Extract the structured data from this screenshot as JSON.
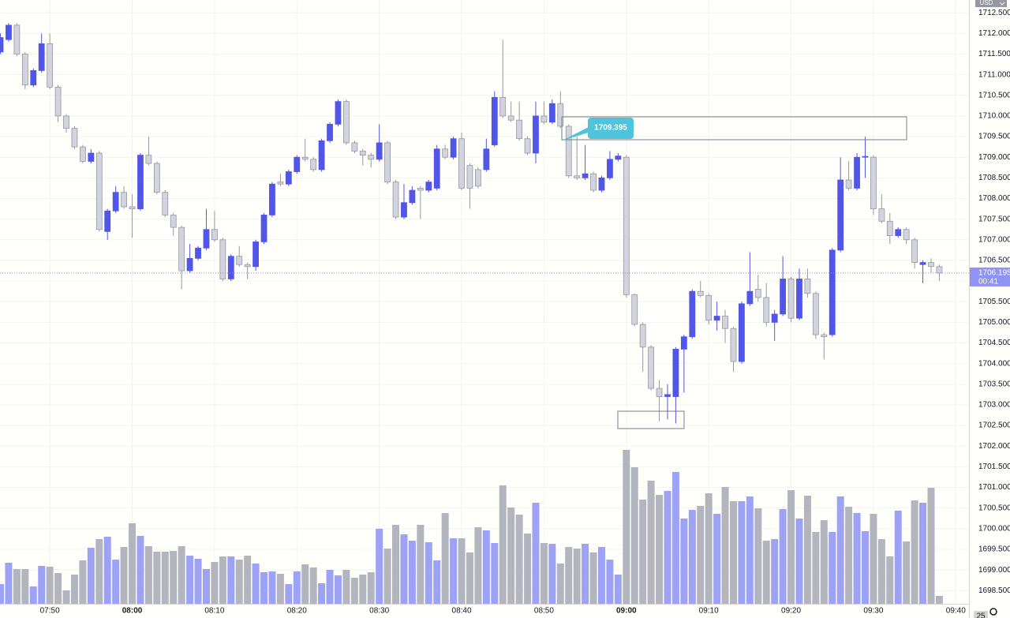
{
  "chart_data": {
    "type": "candlestick",
    "currency": "USD",
    "last_price": 1706.195,
    "countdown": "00:41",
    "callout": 1709.395,
    "badge": "25",
    "up_color": "#5156e9",
    "down_color": "#d1d4dc",
    "down_border": "#9598a1",
    "up_volume_color": "#9ea2f4",
    "down_volume_color": "#b2b5be",
    "grid": true,
    "xlim": [
      463.95,
      581.6
    ],
    "ylim": [
      1698.18,
      1712.81
    ],
    "xticks": [
      {
        "value": 470,
        "label": "07:50"
      },
      {
        "value": 480,
        "label": "08:00"
      },
      {
        "value": 490,
        "label": "08:10"
      },
      {
        "value": 500,
        "label": "08:20"
      },
      {
        "value": 510,
        "label": "08:30"
      },
      {
        "value": 520,
        "label": "08:40"
      },
      {
        "value": 530,
        "label": "08:50"
      },
      {
        "value": 540,
        "label": "09:00"
      },
      {
        "value": 550,
        "label": "09:10"
      },
      {
        "value": 560,
        "label": "09:20"
      },
      {
        "value": 570,
        "label": "09:30"
      },
      {
        "value": 580,
        "label": "09:40"
      }
    ],
    "yticks": [
      {
        "value": 1698.5,
        "label": "1698.500"
      },
      {
        "value": 1699,
        "label": "1699.000"
      },
      {
        "value": 1699.5,
        "label": "1699.500"
      },
      {
        "value": 1700,
        "label": "1700.000"
      },
      {
        "value": 1700.5,
        "label": "1700.500"
      },
      {
        "value": 1701,
        "label": "1701.000"
      },
      {
        "value": 1701.5,
        "label": "1701.500"
      },
      {
        "value": 1702,
        "label": "1702.000"
      },
      {
        "value": 1702.5,
        "label": "1702.500"
      },
      {
        "value": 1703,
        "label": "1703.000"
      },
      {
        "value": 1703.5,
        "label": "1703.500"
      },
      {
        "value": 1704,
        "label": "1704.000"
      },
      {
        "value": 1704.5,
        "label": "1704.500"
      },
      {
        "value": 1705,
        "label": "1705.000"
      },
      {
        "value": 1705.5,
        "label": "1705.500"
      },
      {
        "value": 1706,
        "label": "1706.000"
      },
      {
        "value": 1706.5,
        "label": "1706.500"
      },
      {
        "value": 1707,
        "label": "1707.000"
      },
      {
        "value": 1707.5,
        "label": "1707.500"
      },
      {
        "value": 1708,
        "label": "1708.000"
      },
      {
        "value": 1708.5,
        "label": "1708.500"
      },
      {
        "value": 1709,
        "label": "1709.000"
      },
      {
        "value": 1709.5,
        "label": "1709.500"
      },
      {
        "value": 1710,
        "label": "1710.000"
      },
      {
        "value": 1710.5,
        "label": "1710.500"
      },
      {
        "value": 1711,
        "label": "1711.000"
      },
      {
        "value": 1711.5,
        "label": "1711.500"
      },
      {
        "value": 1712,
        "label": "1712.000"
      },
      {
        "value": 1712.5,
        "label": "1712.500"
      }
    ],
    "x": [
      464,
      465,
      466,
      467,
      468,
      469,
      470,
      471,
      472,
      473,
      474,
      475,
      476,
      477,
      478,
      479,
      480,
      481,
      482,
      483,
      484,
      485,
      486,
      487,
      488,
      489,
      490,
      491,
      492,
      493,
      494,
      495,
      496,
      497,
      498,
      499,
      500,
      501,
      502,
      503,
      504,
      505,
      506,
      507,
      508,
      509,
      510,
      511,
      512,
      513,
      514,
      515,
      516,
      517,
      518,
      519,
      520,
      521,
      522,
      523,
      524,
      525,
      526,
      527,
      528,
      529,
      530,
      531,
      532,
      533,
      534,
      535,
      536,
      537,
      538,
      539,
      540,
      541,
      542,
      543,
      544,
      545,
      546,
      547,
      548,
      549,
      550,
      551,
      552,
      553,
      554,
      555,
      556,
      557,
      558,
      559,
      560,
      561,
      562,
      563,
      564,
      565,
      566,
      567,
      568,
      569,
      570,
      571,
      572,
      573,
      574,
      575,
      576,
      577,
      578
    ],
    "open": [
      1711.55,
      1711.85,
      1712.2,
      1711.5,
      1710.75,
      1711.1,
      1711.75,
      1710.7,
      1710.0,
      1709.7,
      1709.25,
      1708.9,
      1709.1,
      1707.2,
      1707.7,
      1708.15,
      1707.8,
      1707.75,
      1709.05,
      1708.85,
      1708.15,
      1707.6,
      1707.3,
      1706.25,
      1706.55,
      1706.8,
      1707.25,
      1707.0,
      1706.05,
      1706.6,
      1706.4,
      1706.35,
      1706.95,
      1707.6,
      1708.4,
      1708.35,
      1708.65,
      1709.0,
      1708.95,
      1708.7,
      1709.4,
      1709.8,
      1710.35,
      1709.35,
      1709.15,
      1709.05,
      1708.95,
      1709.35,
      1708.4,
      1707.55,
      1707.9,
      1708.25,
      1708.2,
      1708.25,
      1709.2,
      1709.0,
      1709.45,
      1708.8,
      1708.7,
      1708.7,
      1709.3,
      1710.45,
      1710.0,
      1709.9,
      1709.45,
      1709.1,
      1710.0,
      1709.85,
      1710.3,
      1709.75,
      1708.55,
      1708.5,
      1708.6,
      1708.2,
      1708.5,
      1708.95,
      1709.0,
      1705.67,
      1704.95,
      1704.4,
      1703.4,
      1703.2,
      1703.2,
      1704.35,
      1704.65,
      1705.75,
      1705.65,
      1705.05,
      1705.15,
      1704.85,
      1704.05,
      1705.45,
      1705.8,
      1705.6,
      1705.0,
      1705.2,
      1706.05,
      1705.1,
      1706.05,
      1705.7,
      1704.7,
      1704.7,
      1706.75,
      1708.45,
      1708.25,
      1709.0,
      1709.0,
      1707.75,
      1707.45,
      1707.1,
      1707.25,
      1707.0,
      1706.4,
      1706.45,
      1706.35
    ],
    "high": [
      1712.0,
      1712.25,
      1712.25,
      1711.55,
      1711.15,
      1712.0,
      1712.0,
      1710.75,
      1710.05,
      1709.75,
      1709.3,
      1709.2,
      1709.15,
      1707.75,
      1708.3,
      1708.3,
      1708.1,
      1709.1,
      1709.5,
      1708.9,
      1708.2,
      1707.65,
      1707.35,
      1706.9,
      1706.85,
      1707.75,
      1707.7,
      1707.05,
      1706.65,
      1706.85,
      1706.45,
      1707.0,
      1707.65,
      1708.4,
      1708.6,
      1708.7,
      1709.05,
      1709.45,
      1709.0,
      1709.45,
      1709.85,
      1710.4,
      1710.4,
      1709.4,
      1709.2,
      1709.1,
      1709.8,
      1709.4,
      1708.45,
      1708.35,
      1708.3,
      1708.3,
      1708.45,
      1709.3,
      1709.3,
      1709.5,
      1709.6,
      1708.85,
      1708.75,
      1709.45,
      1710.6,
      1711.85,
      1710.35,
      1710.35,
      1709.5,
      1710.35,
      1710.35,
      1710.4,
      1710.6,
      1709.8,
      1709.5,
      1709.3,
      1708.65,
      1708.55,
      1709.15,
      1709.1,
      1709.05,
      1705.7,
      1705.0,
      1704.45,
      1703.6,
      1703.5,
      1704.4,
      1704.7,
      1705.8,
      1706.0,
      1705.7,
      1705.5,
      1705.3,
      1704.9,
      1705.5,
      1706.7,
      1706.15,
      1705.95,
      1705.3,
      1706.6,
      1706.1,
      1706.3,
      1706.3,
      1705.75,
      1704.75,
      1706.8,
      1709.0,
      1708.9,
      1709.1,
      1709.5,
      1709.05,
      1708.1,
      1707.65,
      1707.3,
      1707.3,
      1707.05,
      1706.5,
      1706.55,
      1706.4
    ],
    "low": [
      1711.5,
      1711.8,
      1711.45,
      1710.65,
      1710.7,
      1711.05,
      1710.65,
      1709.85,
      1709.6,
      1709.2,
      1708.85,
      1708.85,
      1707.2,
      1707.0,
      1707.65,
      1707.75,
      1707.05,
      1707.7,
      1708.8,
      1708.1,
      1707.55,
      1707.1,
      1705.8,
      1706.2,
      1706.5,
      1706.75,
      1706.95,
      1706.0,
      1706.0,
      1706.35,
      1706.05,
      1706.25,
      1706.9,
      1707.55,
      1708.3,
      1708.3,
      1708.6,
      1708.9,
      1708.65,
      1708.65,
      1709.35,
      1709.75,
      1709.3,
      1709.1,
      1708.8,
      1708.75,
      1708.9,
      1708.35,
      1707.5,
      1707.5,
      1707.85,
      1707.5,
      1708.15,
      1708.2,
      1708.95,
      1708.95,
      1708.2,
      1707.75,
      1708.25,
      1708.65,
      1709.25,
      1709.95,
      1709.85,
      1709.4,
      1709.05,
      1708.85,
      1709.8,
      1709.8,
      1709.7,
      1708.5,
      1708.45,
      1708.45,
      1708.15,
      1708.15,
      1708.45,
      1708.9,
      1705.6,
      1704.9,
      1703.8,
      1703.35,
      1702.6,
      1702.65,
      1702.55,
      1703.3,
      1704.6,
      1705.6,
      1704.95,
      1704.8,
      1704.5,
      1703.8,
      1704.0,
      1705.4,
      1705.5,
      1704.9,
      1704.55,
      1705.15,
      1705.0,
      1705.05,
      1705.6,
      1704.6,
      1704.1,
      1704.65,
      1706.7,
      1708.2,
      1708.2,
      1708.5,
      1707.6,
      1707.4,
      1706.9,
      1707.05,
      1706.9,
      1706.3,
      1705.95,
      1706.2,
      1706.0
    ],
    "close": [
      1711.9,
      1712.2,
      1711.5,
      1710.75,
      1711.1,
      1711.75,
      1710.7,
      1710.0,
      1709.7,
      1709.25,
      1708.9,
      1709.1,
      1707.25,
      1707.7,
      1708.15,
      1707.8,
      1707.75,
      1709.05,
      1708.85,
      1708.15,
      1707.6,
      1707.3,
      1706.25,
      1706.55,
      1706.8,
      1707.25,
      1707.0,
      1706.05,
      1706.6,
      1706.4,
      1706.35,
      1706.95,
      1707.6,
      1708.35,
      1708.35,
      1708.65,
      1709.0,
      1708.95,
      1708.7,
      1709.4,
      1709.8,
      1710.35,
      1709.35,
      1709.15,
      1709.05,
      1708.95,
      1709.35,
      1708.4,
      1707.55,
      1707.9,
      1708.2,
      1708.2,
      1708.4,
      1709.2,
      1709.0,
      1709.45,
      1708.25,
      1708.25,
      1708.3,
      1709.2,
      1710.45,
      1710.0,
      1709.9,
      1709.45,
      1709.1,
      1710.0,
      1709.85,
      1710.3,
      1709.75,
      1708.55,
      1708.5,
      1708.6,
      1708.2,
      1708.5,
      1708.95,
      1709.03,
      1705.67,
      1704.95,
      1704.4,
      1703.4,
      1703.2,
      1703.25,
      1704.35,
      1704.65,
      1705.75,
      1705.65,
      1705.05,
      1705.15,
      1704.85,
      1704.05,
      1705.45,
      1705.75,
      1705.6,
      1705.0,
      1705.2,
      1706.05,
      1705.1,
      1706.05,
      1705.7,
      1704.7,
      1704.65,
      1706.75,
      1708.45,
      1708.25,
      1709.0,
      1709.02,
      1707.75,
      1707.45,
      1707.1,
      1707.25,
      1707.0,
      1706.45,
      1706.45,
      1706.35,
      1706.195
    ],
    "volume": [
      25,
      52,
      44,
      44,
      22,
      48,
      47,
      39,
      17,
      37,
      55,
      71,
      82,
      85,
      56,
      72,
      102,
      86,
      73,
      66,
      66,
      67,
      73,
      61,
      57,
      44,
      53,
      60,
      60,
      56,
      61,
      51,
      40,
      41,
      38,
      25,
      41,
      50,
      46,
      26,
      43,
      36,
      43,
      33,
      37,
      40,
      95,
      70,
      100,
      88,
      80,
      100,
      78,
      55,
      115,
      83,
      83,
      65,
      97,
      93,
      77,
      150,
      122,
      113,
      89,
      128,
      77,
      76,
      51,
      72,
      70,
      76,
      65,
      72,
      56,
      37,
      195,
      173,
      132,
      156,
      138,
      143,
      167,
      108,
      119,
      124,
      140,
      114,
      148,
      130,
      130,
      136,
      121,
      80,
      82,
      120,
      144,
      108,
      137,
      91,
      106,
      91,
      136,
      123,
      115,
      92,
      114,
      82,
      60,
      118,
      79,
      131,
      128,
      147,
      10
    ]
  }
}
